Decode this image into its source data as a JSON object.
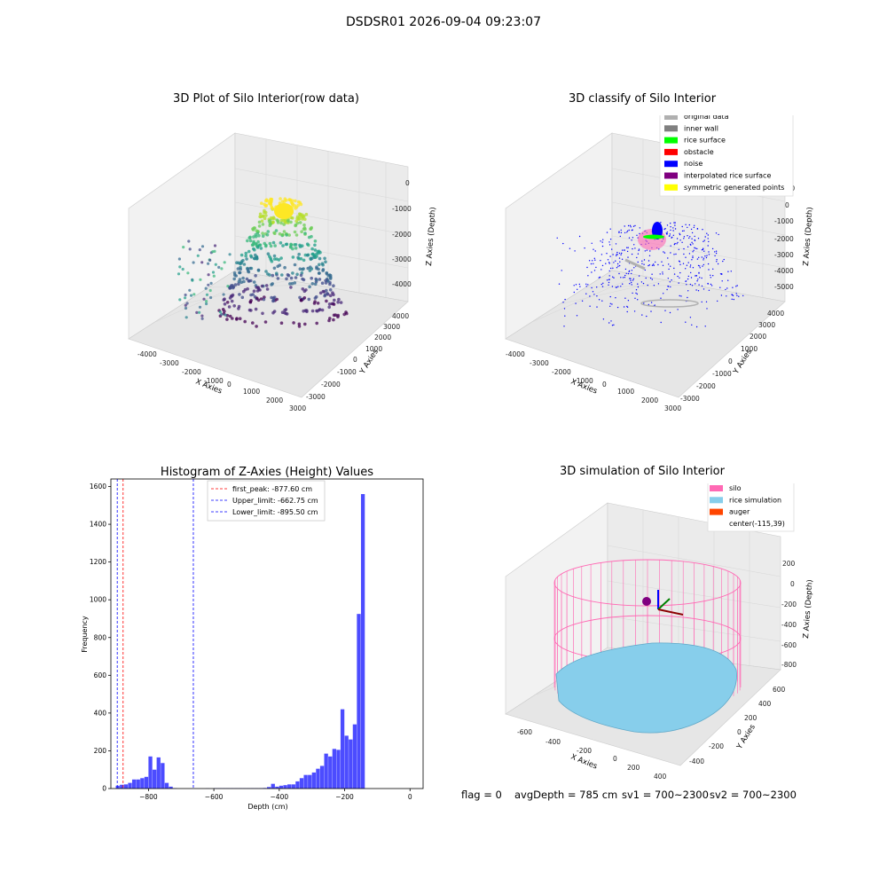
{
  "figure": {
    "title": "DSDSR01 2026-09-04 09:23:07"
  },
  "panels": {
    "raw": {
      "title": "3D Plot of Silo Interior(row data)",
      "xlabel": "X Axies",
      "ylabel": "Y Axies",
      "zlabel": "Z Axies (Depth)",
      "xticks": [
        "-4000",
        "-3000",
        "-2000",
        "-1000",
        "0",
        "1000",
        "2000",
        "3000"
      ],
      "yticks": [
        "-3000",
        "-2000",
        "-1000",
        "0",
        "1000",
        "2000",
        "3000",
        "4000"
      ],
      "zticks": [
        "0",
        "-1000",
        "-2000",
        "-3000",
        "-4000"
      ]
    },
    "classify": {
      "title": "3D classify of Silo Interior",
      "xlabel": "X Axies",
      "ylabel": "Y Axies",
      "zlabel": "Z Axies (Depth)",
      "xticks": [
        "-4000",
        "-3000",
        "-2000",
        "-1000",
        "0",
        "1000",
        "2000",
        "3000"
      ],
      "yticks": [
        "-3000",
        "-2000",
        "-1000",
        "0",
        "1000",
        "2000",
        "3000",
        "4000"
      ],
      "zticks": [
        "1000",
        "0",
        "-1000",
        "-2000",
        "-3000",
        "-4000",
        "-5000"
      ],
      "legend": [
        {
          "label": "original data",
          "color": "#b0b0b0"
        },
        {
          "label": "inner wall",
          "color": "#808080"
        },
        {
          "label": "rice surface",
          "color": "#00ff00"
        },
        {
          "label": "obstacle",
          "color": "#ff0000"
        },
        {
          "label": "noise",
          "color": "#0000ff"
        },
        {
          "label": "interpolated rice surface",
          "color": "#800080"
        },
        {
          "label": "symmetric generated points",
          "color": "#ffff00"
        }
      ]
    },
    "simulation": {
      "title": "3D simulation of Silo Interior",
      "xlabel": "X Axies",
      "ylabel": "Y Axies",
      "zlabel": "Z Axies (Depth)",
      "xticks": [
        "-600",
        "-400",
        "-200",
        "0",
        "200",
        "400"
      ],
      "yticks": [
        "-400",
        "-200",
        "0",
        "200",
        "400",
        "600"
      ],
      "zticks": [
        "200",
        "0",
        "-200",
        "-400",
        "-600",
        "-800"
      ],
      "legend": [
        {
          "label": "silo",
          "color": "#ff69b4"
        },
        {
          "label": "rice simulation",
          "color": "#87ceeb"
        },
        {
          "label": "auger",
          "color": "#ff4500"
        },
        {
          "label": "center(-115,39)",
          "color": ""
        }
      ]
    }
  },
  "chart_data": {
    "type": "bar",
    "title": "Histogram of Z-Axies (Height) Values",
    "xlabel": "Depth (cm)",
    "ylabel": "Frequency",
    "xlim": [
      -915,
      40
    ],
    "ylim": [
      0,
      1640
    ],
    "bin_width": 12.5,
    "bar_color": "#0000ff",
    "bins": [
      {
        "x": -900,
        "y": 15
      },
      {
        "x": -887.5,
        "y": 20
      },
      {
        "x": -875,
        "y": 22
      },
      {
        "x": -862.5,
        "y": 30
      },
      {
        "x": -850,
        "y": 48
      },
      {
        "x": -837.5,
        "y": 48
      },
      {
        "x": -825,
        "y": 55
      },
      {
        "x": -812.5,
        "y": 62
      },
      {
        "x": -800,
        "y": 170
      },
      {
        "x": -787.5,
        "y": 100
      },
      {
        "x": -775,
        "y": 165
      },
      {
        "x": -762.5,
        "y": 135
      },
      {
        "x": -750,
        "y": 30
      },
      {
        "x": -737.5,
        "y": 10
      },
      {
        "x": -725,
        "y": 2
      },
      {
        "x": -712.5,
        "y": 0
      },
      {
        "x": -700,
        "y": 0
      },
      {
        "x": -687.5,
        "y": 0
      },
      {
        "x": -675,
        "y": 0
      },
      {
        "x": -662.5,
        "y": 0
      },
      {
        "x": -650,
        "y": 0
      },
      {
        "x": -637.5,
        "y": 0
      },
      {
        "x": -625,
        "y": 1
      },
      {
        "x": -612.5,
        "y": 0
      },
      {
        "x": -600,
        "y": 2
      },
      {
        "x": -587.5,
        "y": 2
      },
      {
        "x": -575,
        "y": 2
      },
      {
        "x": -562.5,
        "y": 2
      },
      {
        "x": -550,
        "y": 2
      },
      {
        "x": -537.5,
        "y": 2
      },
      {
        "x": -525,
        "y": 2
      },
      {
        "x": -512.5,
        "y": 2
      },
      {
        "x": -500,
        "y": 2
      },
      {
        "x": -487.5,
        "y": 2
      },
      {
        "x": -475,
        "y": 2
      },
      {
        "x": -462.5,
        "y": 2
      },
      {
        "x": -450,
        "y": 3
      },
      {
        "x": -437.5,
        "y": 8
      },
      {
        "x": -425,
        "y": 25
      },
      {
        "x": -412.5,
        "y": 10
      },
      {
        "x": -400,
        "y": 15
      },
      {
        "x": -387.5,
        "y": 18
      },
      {
        "x": -375,
        "y": 22
      },
      {
        "x": -362.5,
        "y": 22
      },
      {
        "x": -350,
        "y": 38
      },
      {
        "x": -337.5,
        "y": 55
      },
      {
        "x": -325,
        "y": 72
      },
      {
        "x": -312.5,
        "y": 72
      },
      {
        "x": -300,
        "y": 85
      },
      {
        "x": -287.5,
        "y": 105
      },
      {
        "x": -275,
        "y": 120
      },
      {
        "x": -262.5,
        "y": 185
      },
      {
        "x": -250,
        "y": 170
      },
      {
        "x": -237.5,
        "y": 210
      },
      {
        "x": -225,
        "y": 205
      },
      {
        "x": -212.5,
        "y": 420
      },
      {
        "x": -200,
        "y": 280
      },
      {
        "x": -187.5,
        "y": 260
      },
      {
        "x": -175,
        "y": 340
      },
      {
        "x": -162.5,
        "y": 925
      },
      {
        "x": -150,
        "y": 1560
      }
    ],
    "vlines": [
      {
        "label": "first_peak: -877.60 cm",
        "x": -877.6,
        "color": "#ff0000"
      },
      {
        "label": "Upper_limit: -662.75 cm",
        "x": -662.75,
        "color": "#0000ff"
      },
      {
        "label": "Lower_limit: -895.50 cm",
        "x": -895.5,
        "color": "#0000ff"
      }
    ],
    "xticks": [
      -800,
      -600,
      -400,
      -200,
      0
    ],
    "yticks": [
      0,
      200,
      400,
      600,
      800,
      1000,
      1200,
      1400,
      1600
    ]
  },
  "status": {
    "flag": "flag = 0",
    "avg_depth": "avgDepth = 785 cm",
    "sv1": "sv1 = 700~2300",
    "sv2": "sv2 = 700~2300"
  }
}
